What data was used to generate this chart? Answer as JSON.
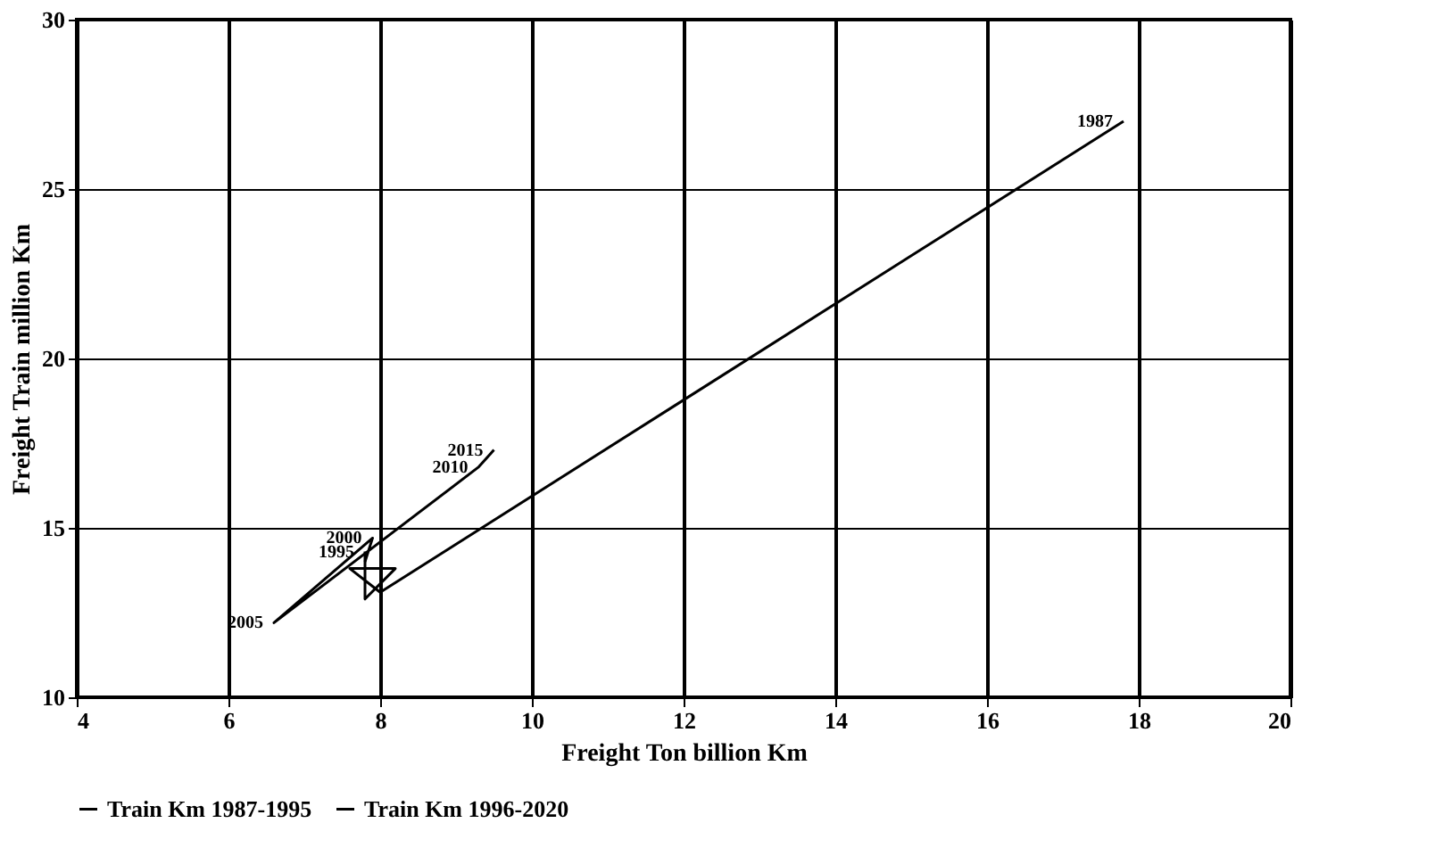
{
  "chart_data": {
    "type": "line",
    "xlabel": "Freight Ton billion Km",
    "ylabel": "Freight Train million Km",
    "series": [
      {
        "name": "Train Km 1987-1995",
        "color": "#000000",
        "x": [
          17.8,
          8.0,
          7.6,
          8.2,
          7.8,
          7.8
        ],
        "values": [
          27.0,
          13.1,
          13.8,
          13.8,
          12.9,
          14.3
        ]
      },
      {
        "name": "Train Km 1996-2020",
        "color": "#000000",
        "x": [
          7.8,
          7.9,
          6.6,
          9.3,
          9.5
        ],
        "values": [
          14.0,
          14.7,
          12.2,
          16.8,
          17.3
        ]
      }
    ],
    "annotations": [
      {
        "text": "1987",
        "x": 17.8,
        "y": 27.0
      },
      {
        "text": "2015",
        "x": 9.5,
        "y": 17.3
      },
      {
        "text": "2010",
        "x": 9.3,
        "y": 16.8
      },
      {
        "text": "2005",
        "x": 6.6,
        "y": 12.2
      },
      {
        "text": "2000",
        "x": 7.9,
        "y": 14.7
      },
      {
        "text": "1995",
        "x": 7.8,
        "y": 14.3
      }
    ],
    "xlim": [
      4,
      20
    ],
    "xticks": [
      4,
      6,
      8,
      10,
      12,
      14,
      16,
      18,
      20
    ],
    "ylim": [
      10,
      30
    ],
    "yticks": [
      10,
      15,
      20,
      25,
      30
    ],
    "grid": true,
    "legend": "bottom",
    "marker": "none",
    "line_style": "solid"
  }
}
